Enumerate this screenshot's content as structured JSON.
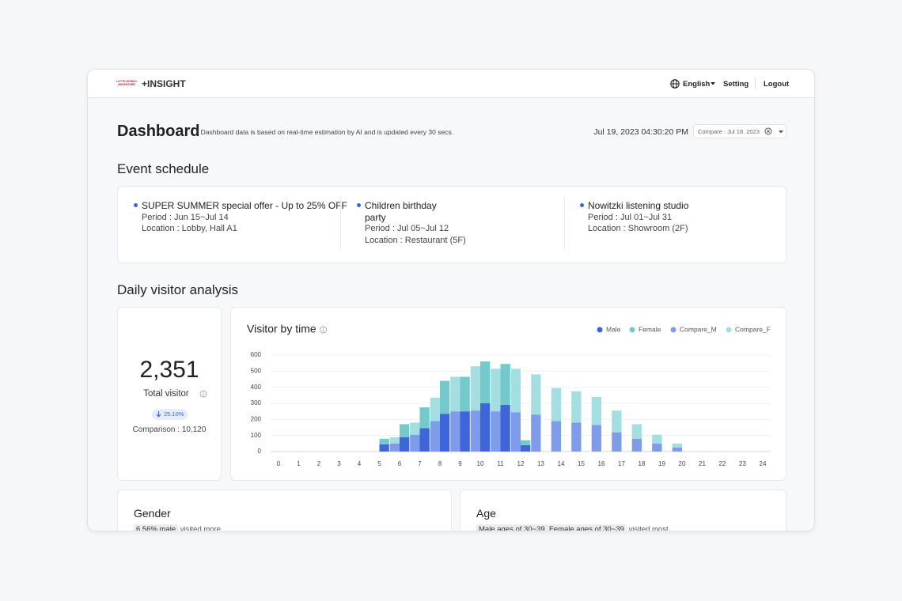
{
  "header": {
    "logo": "LOTTE WORLD ADVENTURE",
    "product": "+INSIGHT",
    "language": "English",
    "nav": [
      "Setting",
      "Logout"
    ]
  },
  "dashboard": {
    "title": "Dashboard",
    "note": "* Dashboard data is based on real-time estimation by AI and is updated every 30 secs.",
    "datetime": "Jul 19, 2023 04:30:20 PM",
    "compare": "Compare : Jul 18, 2023"
  },
  "events": {
    "title": "Event schedule",
    "items": [
      {
        "name": "SUPER SUMMER special offer - Up to 25% OFF",
        "period": "Period : Jun 15~Jul 14",
        "location": "Location : Lobby, Hall A1"
      },
      {
        "name": "Children birthday party",
        "period": "Period : Jul 05~Jul 12",
        "location": "Location : Restaurant (5F)"
      },
      {
        "name": "Nowitzki listening studio",
        "period": "Period : Jul 01~Jul 31",
        "location": "Location : Showroom (2F)"
      }
    ]
  },
  "analysis": {
    "title": "Daily visitor analysis",
    "total": {
      "value": "2,351",
      "label": "Total visitor",
      "change": "25.10%",
      "comparison": "Comparison : 10,120"
    },
    "gender": {
      "title": "Gender",
      "highlight": "6.56% male",
      "text": "visited more"
    },
    "age": {
      "title": "Age",
      "highlight": "Male ages of 30~39, Female ages of 30~39",
      "text": "visited most"
    }
  },
  "chart_data": {
    "type": "bar",
    "title": "Visitor by time",
    "categories": [
      0,
      1,
      2,
      3,
      4,
      5,
      6,
      7,
      8,
      9,
      10,
      11,
      12,
      13,
      14,
      15,
      16,
      17,
      18,
      19,
      20,
      21,
      22,
      23,
      24
    ],
    "series": [
      {
        "name": "Male",
        "color": "#3d66db",
        "stack": 1,
        "values": [
          0,
          0,
          0,
          0,
          0,
          45,
          90,
          145,
          235,
          250,
          300,
          290,
          40,
          0,
          0,
          0,
          0,
          0,
          0,
          0,
          0,
          0,
          0,
          0,
          0
        ]
      },
      {
        "name": "Female",
        "color": "#72cacb",
        "stack": 1,
        "values": [
          0,
          0,
          0,
          0,
          0,
          35,
          80,
          130,
          205,
          215,
          260,
          255,
          30,
          0,
          0,
          0,
          0,
          0,
          0,
          0,
          0,
          0,
          0,
          0,
          0
        ]
      },
      {
        "name": "Compare_M",
        "color": "#7e9ce9",
        "stack": 0,
        "values": [
          0,
          0,
          0,
          0,
          0,
          0,
          50,
          105,
          190,
          250,
          255,
          250,
          245,
          230,
          190,
          180,
          165,
          120,
          80,
          50,
          25,
          0,
          0,
          0,
          0
        ]
      },
      {
        "name": "Compare_F",
        "color": "#a3dfe1",
        "stack": 0,
        "values": [
          0,
          0,
          0,
          0,
          0,
          0,
          38,
          75,
          145,
          215,
          275,
          265,
          270,
          250,
          205,
          195,
          175,
          135,
          90,
          55,
          25,
          0,
          0,
          0,
          0
        ]
      }
    ],
    "ylim": [
      0,
      600
    ],
    "yticks": [
      0,
      100,
      200,
      300,
      400,
      500,
      600
    ],
    "grid": true,
    "legend": "top-right"
  }
}
